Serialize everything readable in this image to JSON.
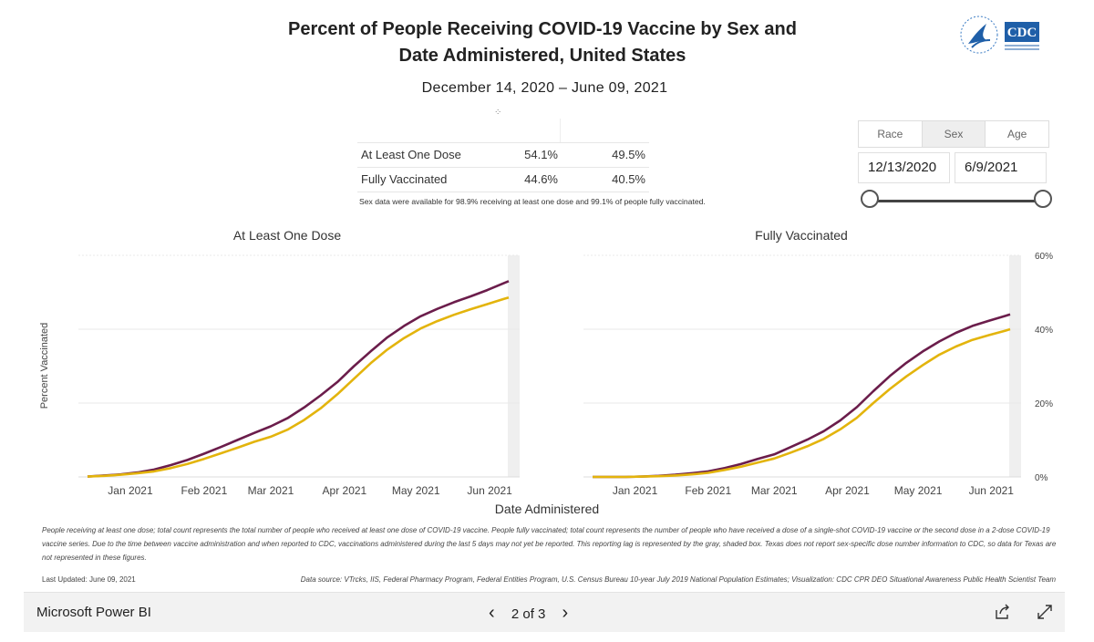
{
  "header": {
    "title_line1": "Percent of People Receiving COVID-19 Vaccine by Sex and",
    "title_line2": "Date Administered, United States",
    "date_range": "December 14, 2020 – June 09, 2021"
  },
  "summary": {
    "rows": [
      {
        "label": "At Least One Dose",
        "female": "54.1%",
        "male": "49.5%"
      },
      {
        "label": "Fully Vaccinated",
        "female": "44.6%",
        "male": "40.5%"
      }
    ],
    "note": "Sex data were available for 98.9% receiving at least one dose and 99.1% of people fully vaccinated."
  },
  "filters": {
    "tabs": [
      "Race",
      "Sex",
      "Age"
    ],
    "active_tab": "Sex",
    "start_date": "12/13/2020",
    "end_date": "6/9/2021"
  },
  "axis": {
    "ylabel": "Percent Vaccinated",
    "xlabel": "Date Administered"
  },
  "colors": {
    "female": "#6b1d4b",
    "male": "#e3b40c",
    "grid": "#e8e8e8",
    "shade": "#efefef"
  },
  "chart_data": [
    {
      "type": "line",
      "title": "At Least One Dose",
      "x_ticks": [
        "Jan 2021",
        "Feb 2021",
        "Mar 2021",
        "Apr 2021",
        "May 2021",
        "Jun 2021"
      ],
      "ylim": [
        0,
        60
      ],
      "y_ticks": [
        "0%",
        "20%",
        "40%",
        "60%"
      ],
      "x": [
        "2020-12-14",
        "2020-12-21",
        "2020-12-28",
        "2021-01-04",
        "2021-01-11",
        "2021-01-18",
        "2021-01-25",
        "2021-02-01",
        "2021-02-08",
        "2021-02-15",
        "2021-02-22",
        "2021-03-01",
        "2021-03-08",
        "2021-03-15",
        "2021-03-22",
        "2021-03-29",
        "2021-04-05",
        "2021-04-12",
        "2021-04-19",
        "2021-04-26",
        "2021-05-03",
        "2021-05-10",
        "2021-05-17",
        "2021-05-24",
        "2021-05-31",
        "2021-06-07",
        "2021-06-09"
      ],
      "series": [
        {
          "values": [
            0.1,
            0.4,
            0.7,
            1.2,
            2.0,
            3.2,
            4.6,
            6.3,
            8.1,
            10.0,
            11.9,
            13.7,
            15.9,
            18.8,
            22.1,
            25.7,
            30.0,
            34.0,
            37.8,
            40.9,
            43.5,
            45.5,
            47.3,
            48.9,
            50.6,
            52.5,
            53.0
          ]
        },
        {
          "values": [
            0.1,
            0.3,
            0.6,
            1.0,
            1.5,
            2.4,
            3.5,
            4.9,
            6.4,
            7.9,
            9.5,
            10.9,
            12.8,
            15.4,
            18.6,
            22.4,
            26.6,
            30.8,
            34.5,
            37.6,
            40.2,
            42.2,
            43.9,
            45.4,
            46.8,
            48.2,
            48.6
          ]
        }
      ]
    },
    {
      "type": "line",
      "title": "Fully Vaccinated",
      "x_ticks": [
        "Jan 2021",
        "Feb 2021",
        "Mar 2021",
        "Apr 2021",
        "May 2021",
        "Jun 2021"
      ],
      "ylim": [
        0,
        60
      ],
      "y_ticks": [
        "0%",
        "20%",
        "40%",
        "60%"
      ],
      "x": [
        "2020-12-14",
        "2020-12-21",
        "2020-12-28",
        "2021-01-04",
        "2021-01-11",
        "2021-01-18",
        "2021-01-25",
        "2021-02-01",
        "2021-02-08",
        "2021-02-15",
        "2021-02-22",
        "2021-03-01",
        "2021-03-08",
        "2021-03-15",
        "2021-03-22",
        "2021-03-29",
        "2021-04-05",
        "2021-04-12",
        "2021-04-19",
        "2021-04-26",
        "2021-05-03",
        "2021-05-10",
        "2021-05-17",
        "2021-05-24",
        "2021-05-31",
        "2021-06-07",
        "2021-06-09"
      ],
      "series": [
        {
          "values": [
            0,
            0,
            0,
            0.1,
            0.3,
            0.6,
            1.0,
            1.5,
            2.4,
            3.5,
            4.9,
            6.1,
            8.1,
            10.1,
            12.4,
            15.3,
            18.9,
            23.2,
            27.3,
            30.9,
            34.0,
            36.7,
            39.0,
            40.9,
            42.3,
            43.6,
            44.0
          ]
        },
        {
          "values": [
            0,
            0,
            0,
            0.1,
            0.2,
            0.4,
            0.7,
            1.1,
            1.9,
            2.8,
            3.9,
            5.0,
            6.6,
            8.3,
            10.3,
            12.9,
            16.0,
            20.0,
            23.8,
            27.2,
            30.3,
            33.1,
            35.3,
            37.1,
            38.4,
            39.6,
            40.0
          ]
        }
      ]
    }
  ],
  "footer": {
    "footnote": "People receiving at least one dose; total count represents the total number of people who received at least one dose of COVID-19 vaccine. People fully vaccinated; total count represents the number of people who have received a dose of a single-shot COVID-19 vaccine or the second dose in a 2-dose COVID-19 vaccine series.  Due to the time between vaccine administration and when reported to CDC, vaccinations administered during the last 5 days may not yet be reported. This reporting lag is represented by the gray, shaded box. Texas does not report sex-specific dose number information to CDC, so data for Texas are not represented in these figures.",
    "updated": "Last Updated: June 09, 2021",
    "source": "Data source: VTrcks, IIS, Federal Pharmacy Program, Federal Entities Program, U.S. Census Bureau 10-year July 2019 National Population Estimates; Visualization: CDC CPR DEO Situational Awareness Public Health Scientist Team"
  },
  "powerbi": {
    "brand": "Microsoft Power BI",
    "page_label": "2 of 3"
  },
  "logo": {
    "text": "CDC",
    "icon": "hhs-eagle-icon"
  }
}
